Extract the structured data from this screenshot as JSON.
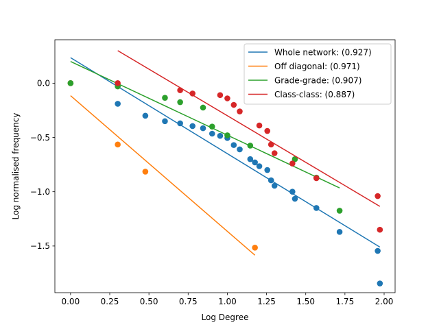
{
  "chart_data": {
    "type": "scatter",
    "title": "",
    "xlabel": "Log Degree",
    "ylabel": "Log normalised frequency",
    "xlim": [
      -0.1,
      2.07
    ],
    "ylim": [
      -1.93,
      0.4
    ],
    "xticks": [
      0.0,
      0.25,
      0.5,
      0.75,
      1.0,
      1.25,
      1.5,
      1.75,
      2.0
    ],
    "xtick_labels": [
      "0.00",
      "0.25",
      "0.50",
      "0.75",
      "1.00",
      "1.25",
      "1.50",
      "1.75",
      "2.00"
    ],
    "yticks": [
      0.0,
      -0.5,
      -1.0,
      -1.5
    ],
    "ytick_labels": [
      "0.0",
      "−0.5",
      "−1.0",
      "−1.5"
    ],
    "grid": false,
    "legend_position": "top-right",
    "series": [
      {
        "name": "Whole network: (0.927)",
        "color": "#1f77b4",
        "points": [
          [
            0.0,
            0.0
          ],
          [
            0.301,
            -0.19
          ],
          [
            0.477,
            -0.3
          ],
          [
            0.602,
            -0.35
          ],
          [
            0.699,
            -0.37
          ],
          [
            0.778,
            -0.395
          ],
          [
            0.845,
            -0.415
          ],
          [
            0.903,
            -0.465
          ],
          [
            0.954,
            -0.485
          ],
          [
            1.0,
            -0.505
          ],
          [
            1.041,
            -0.57
          ],
          [
            1.079,
            -0.61
          ],
          [
            1.146,
            -0.7
          ],
          [
            1.176,
            -0.73
          ],
          [
            1.204,
            -0.765
          ],
          [
            1.255,
            -0.8
          ],
          [
            1.279,
            -0.895
          ],
          [
            1.301,
            -0.945
          ],
          [
            1.415,
            -1.0
          ],
          [
            1.431,
            -1.065
          ],
          [
            1.568,
            -1.15
          ],
          [
            1.716,
            -1.37
          ],
          [
            1.959,
            -1.545
          ],
          [
            1.973,
            -1.845
          ]
        ],
        "fit": [
          [
            0.0,
            0.235
          ],
          [
            1.973,
            -1.51
          ]
        ]
      },
      {
        "name": "Off diagonal: (0.971)",
        "color": "#ff7f0e",
        "points": [
          [
            0.0,
            0.0
          ],
          [
            0.301,
            -0.565
          ],
          [
            0.477,
            -0.815
          ],
          [
            1.176,
            -1.515
          ]
        ],
        "fit": [
          [
            0.0,
            -0.115
          ],
          [
            1.176,
            -1.585
          ]
        ]
      },
      {
        "name": "Grade-grade: (0.907)",
        "color": "#2ca02c",
        "points": [
          [
            0.0,
            0.0
          ],
          [
            0.301,
            -0.03
          ],
          [
            0.602,
            -0.135
          ],
          [
            0.699,
            -0.175
          ],
          [
            0.845,
            -0.225
          ],
          [
            0.903,
            -0.4
          ],
          [
            1.0,
            -0.48
          ],
          [
            1.146,
            -0.575
          ],
          [
            1.431,
            -0.7
          ],
          [
            1.568,
            -0.87
          ],
          [
            1.716,
            -1.175
          ]
        ],
        "fit": [
          [
            0.0,
            0.2
          ],
          [
            1.716,
            -0.965
          ]
        ]
      },
      {
        "name": "Class-class: (0.887)",
        "color": "#d62728",
        "points": [
          [
            0.301,
            0.0
          ],
          [
            0.699,
            -0.065
          ],
          [
            0.778,
            -0.095
          ],
          [
            0.954,
            -0.11
          ],
          [
            1.0,
            -0.14
          ],
          [
            1.041,
            -0.2
          ],
          [
            1.079,
            -0.26
          ],
          [
            1.204,
            -0.39
          ],
          [
            1.255,
            -0.44
          ],
          [
            1.279,
            -0.565
          ],
          [
            1.301,
            -0.645
          ],
          [
            1.415,
            -0.74
          ],
          [
            1.568,
            -0.875
          ],
          [
            1.959,
            -1.04
          ],
          [
            1.973,
            -1.35
          ]
        ],
        "fit": [
          [
            0.301,
            0.3
          ],
          [
            1.973,
            -1.135
          ]
        ]
      }
    ]
  }
}
